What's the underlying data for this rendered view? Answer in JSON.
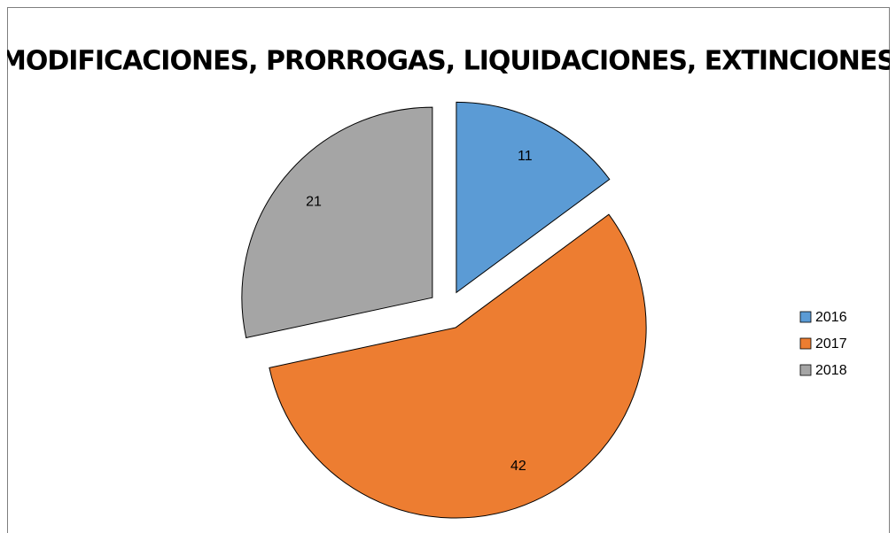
{
  "chart_data": {
    "type": "pie",
    "title": "MODIFICACIONES, PRORROGAS, LIQUIDACIONES, EXTINCIONES",
    "categories": [
      "2016",
      "2017",
      "2018"
    ],
    "values": [
      11,
      42,
      21
    ],
    "colors": [
      "#5b9bd5",
      "#ed7d31",
      "#a5a5a5"
    ],
    "exploded": true,
    "legend": "right"
  }
}
